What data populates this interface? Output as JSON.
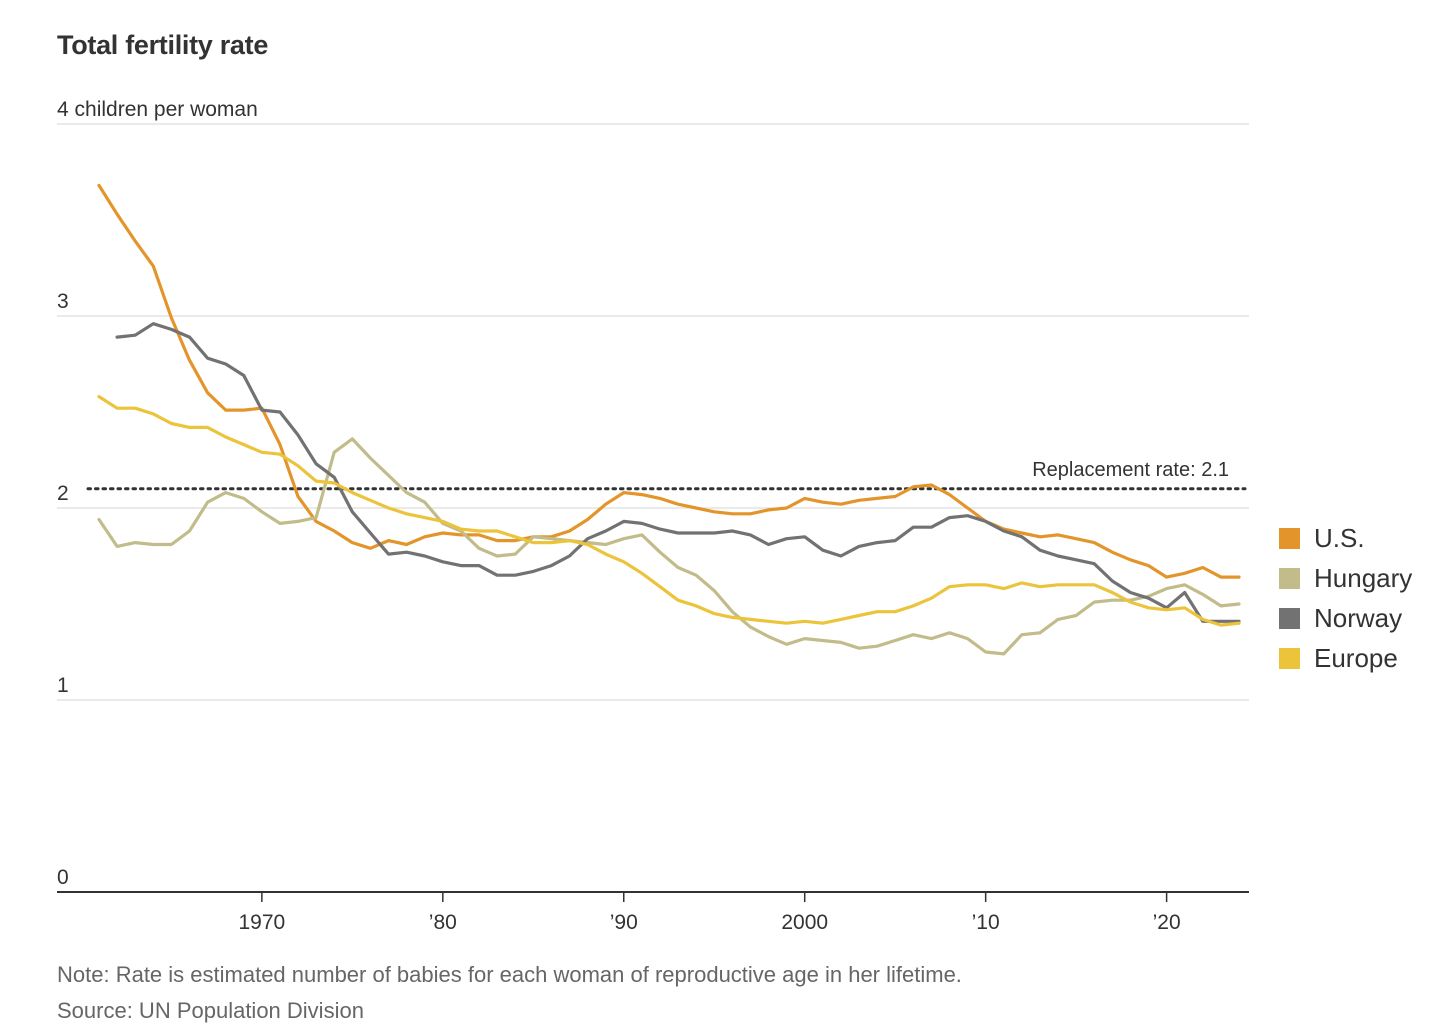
{
  "chart_data": {
    "type": "line",
    "title": "Total fertility rate",
    "ylabel": "4 children per woman",
    "ylim": [
      0,
      4
    ],
    "xlim": [
      1961,
      2024
    ],
    "y_ticks": [
      {
        "value": 4,
        "label": "4 children per woman"
      },
      {
        "value": 3,
        "label": "3"
      },
      {
        "value": 2,
        "label": "2"
      },
      {
        "value": 1,
        "label": "1"
      },
      {
        "value": 0,
        "label": "0"
      }
    ],
    "x_ticks": [
      {
        "value": 1970,
        "label": "1970"
      },
      {
        "value": 1980,
        "label": "’80"
      },
      {
        "value": 1990,
        "label": "’90"
      },
      {
        "value": 2000,
        "label": "2000"
      },
      {
        "value": 2010,
        "label": "’10"
      },
      {
        "value": 2020,
        "label": "’20"
      }
    ],
    "reference_line": {
      "value": 2.1,
      "label": "Replacement rate: 2.1"
    },
    "legend": "right",
    "series": [
      {
        "name": "U.S.",
        "color": "#e3952b",
        "start_year": 1961,
        "values": [
          3.68,
          3.53,
          3.39,
          3.26,
          2.99,
          2.77,
          2.6,
          2.51,
          2.51,
          2.52,
          2.33,
          2.06,
          1.93,
          1.88,
          1.82,
          1.79,
          1.83,
          1.81,
          1.85,
          1.87,
          1.86,
          1.86,
          1.83,
          1.83,
          1.85,
          1.85,
          1.88,
          1.94,
          2.02,
          2.08,
          2.07,
          2.05,
          2.02,
          2.0,
          1.98,
          1.97,
          1.97,
          1.99,
          2.0,
          2.05,
          2.03,
          2.02,
          2.04,
          2.05,
          2.06,
          2.11,
          2.12,
          2.07,
          2.0,
          1.93,
          1.89,
          1.87,
          1.85,
          1.86,
          1.84,
          1.82,
          1.77,
          1.73,
          1.7,
          1.64,
          1.66,
          1.69,
          1.64,
          1.64
        ]
      },
      {
        "name": "Hungary",
        "color": "#c1bc8a",
        "start_year": 1961,
        "values": [
          1.94,
          1.8,
          1.82,
          1.81,
          1.81,
          1.88,
          2.03,
          2.08,
          2.05,
          1.98,
          1.92,
          1.93,
          1.95,
          2.29,
          2.36,
          2.26,
          2.17,
          2.08,
          2.03,
          1.92,
          1.88,
          1.79,
          1.75,
          1.76,
          1.85,
          1.84,
          1.83,
          1.82,
          1.81,
          1.84,
          1.86,
          1.77,
          1.69,
          1.65,
          1.57,
          1.46,
          1.38,
          1.33,
          1.29,
          1.32,
          1.31,
          1.3,
          1.27,
          1.28,
          1.31,
          1.34,
          1.32,
          1.35,
          1.32,
          1.25,
          1.24,
          1.34,
          1.35,
          1.42,
          1.44,
          1.51,
          1.52,
          1.52,
          1.54,
          1.58,
          1.6,
          1.55,
          1.49,
          1.5
        ]
      },
      {
        "name": "Norway",
        "color": "#727272",
        "start_year": 1962,
        "values": [
          2.89,
          2.9,
          2.96,
          2.93,
          2.89,
          2.78,
          2.75,
          2.69,
          2.51,
          2.5,
          2.38,
          2.23,
          2.16,
          1.98,
          1.87,
          1.76,
          1.77,
          1.75,
          1.72,
          1.7,
          1.7,
          1.65,
          1.65,
          1.67,
          1.7,
          1.75,
          1.84,
          1.88,
          1.93,
          1.92,
          1.89,
          1.87,
          1.87,
          1.87,
          1.88,
          1.86,
          1.81,
          1.84,
          1.85,
          1.78,
          1.75,
          1.8,
          1.82,
          1.83,
          1.9,
          1.9,
          1.95,
          1.96,
          1.93,
          1.88,
          1.85,
          1.78,
          1.75,
          1.73,
          1.71,
          1.62,
          1.56,
          1.53,
          1.48,
          1.56,
          1.41,
          1.41,
          1.41
        ]
      },
      {
        "name": "Europe",
        "color": "#ebc43c",
        "start_year": 1961,
        "values": [
          2.58,
          2.52,
          2.52,
          2.49,
          2.44,
          2.42,
          2.42,
          2.37,
          2.33,
          2.29,
          2.28,
          2.22,
          2.14,
          2.13,
          2.08,
          2.04,
          2.0,
          1.97,
          1.95,
          1.93,
          1.89,
          1.88,
          1.88,
          1.85,
          1.82,
          1.82,
          1.83,
          1.81,
          1.76,
          1.72,
          1.66,
          1.59,
          1.52,
          1.49,
          1.45,
          1.43,
          1.42,
          1.41,
          1.4,
          1.41,
          1.4,
          1.42,
          1.44,
          1.46,
          1.46,
          1.49,
          1.53,
          1.59,
          1.6,
          1.6,
          1.58,
          1.61,
          1.59,
          1.6,
          1.6,
          1.6,
          1.56,
          1.51,
          1.48,
          1.47,
          1.48,
          1.42,
          1.39,
          1.4
        ]
      }
    ]
  },
  "footer": {
    "note": "Note: Rate is estimated number of babies for each woman of reproductive age in her lifetime.",
    "source": "Source: UN Population Division"
  }
}
